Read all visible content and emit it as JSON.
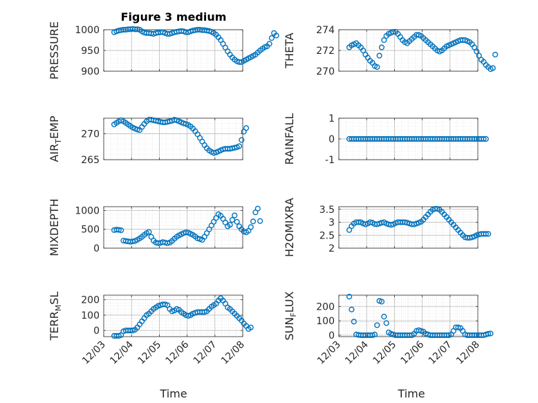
{
  "figure": {
    "title": "Figure 3 medium",
    "xlabel": "Time"
  },
  "style": {
    "marker_color": "#0072BD",
    "axes_color": "#262626",
    "grid_color": "#b0b0b0",
    "minor_grid_color": "#d8d8d8"
  },
  "chart_data": [
    {
      "type": "scatter",
      "position": "row1-left",
      "ylabel": "PRESSURE",
      "ylim": [
        900,
        1000
      ],
      "yticks": [
        900,
        950,
        1000
      ],
      "x_start": "12/03 09:00",
      "x_step_hours": 2,
      "xtick_labels": [
        "12/03",
        "12/04",
        "12/05",
        "12/06",
        "12/07",
        "12/08"
      ],
      "show_xtick_labels": false,
      "values": [
        994,
        996,
        998,
        999,
        1000,
        1000,
        1001,
        1001,
        1002,
        1001,
        1001,
        1000,
        996,
        993,
        992,
        992,
        991,
        990,
        992,
        993,
        994,
        994,
        992,
        990,
        990,
        992,
        994,
        995,
        996,
        997,
        996,
        994,
        994,
        996,
        998,
        999,
        1000,
        1000,
        999,
        999,
        998,
        997,
        995,
        992,
        988,
        982,
        975,
        966,
        957,
        948,
        940,
        933,
        928,
        924,
        922,
        922,
        925,
        928,
        931,
        934,
        937,
        940,
        945,
        950,
        954,
        958,
        960,
        966,
        980,
        992,
        986
      ]
    },
    {
      "type": "scatter",
      "position": "row1-right",
      "ylabel": "THETA",
      "ylim": [
        270,
        274
      ],
      "yticks": [
        270,
        272,
        274
      ],
      "x_start": "12/03 09:00",
      "x_step_hours": 2,
      "xtick_labels": [
        "12/03",
        "12/04",
        "12/05",
        "12/06",
        "12/07",
        "12/08"
      ],
      "show_xtick_labels": false,
      "values": [
        272.3,
        272.5,
        272.6,
        272.7,
        272.5,
        272.3,
        272.0,
        271.6,
        271.3,
        271.0,
        270.8,
        270.5,
        270.4,
        271.5,
        272.3,
        273.0,
        273.4,
        273.6,
        273.7,
        273.8,
        273.8,
        273.6,
        273.3,
        273.0,
        272.8,
        272.7,
        272.9,
        273.1,
        273.3,
        273.5,
        273.5,
        273.4,
        273.2,
        273.0,
        272.8,
        272.6,
        272.4,
        272.2,
        272.0,
        271.9,
        272.0,
        272.2,
        272.4,
        272.5,
        272.6,
        272.7,
        272.8,
        272.9,
        273.0,
        273.0,
        273.0,
        272.9,
        272.8,
        272.6,
        272.3,
        271.9,
        271.5,
        271.1,
        270.9,
        270.6,
        270.4,
        270.2,
        270.3,
        271.6
      ]
    },
    {
      "type": "scatter",
      "position": "row2-left",
      "ylabel": "AIR_TEMP",
      "ylim": [
        265,
        273
      ],
      "yticks": [
        265,
        270
      ],
      "x_start": "12/03 09:00",
      "x_step_hours": 2,
      "xtick_labels": [
        "12/03",
        "12/04",
        "12/05",
        "12/06",
        "12/07",
        "12/08"
      ],
      "show_xtick_labels": false,
      "values": [
        271.8,
        272.1,
        272.4,
        272.6,
        272.4,
        272.1,
        271.8,
        271.5,
        271.2,
        271.0,
        270.8,
        270.7,
        271.3,
        271.9,
        272.4,
        272.7,
        272.7,
        272.6,
        272.5,
        272.4,
        272.3,
        272.2,
        272.2,
        272.3,
        272.4,
        272.5,
        272.7,
        272.6,
        272.4,
        272.2,
        272.0,
        271.9,
        271.7,
        271.4,
        271.0,
        270.5,
        269.9,
        269.2,
        268.5,
        267.8,
        267.2,
        266.8,
        266.5,
        266.3,
        266.4,
        266.6,
        266.8,
        267.0,
        267.1,
        267.1,
        267.1,
        267.2,
        267.3,
        267.4,
        267.6,
        268.8,
        270.4,
        271.1
      ]
    },
    {
      "type": "scatter",
      "position": "row2-right",
      "ylabel": "RAINFALL",
      "ylim": [
        -1,
        1
      ],
      "yticks": [
        -1,
        0,
        1
      ],
      "x_start": "12/03 09:00",
      "x_step_hours": 2,
      "xtick_labels": [
        "12/03",
        "12/04",
        "12/05",
        "12/06",
        "12/07",
        "12/08"
      ],
      "show_xtick_labels": false,
      "constant_value": 0,
      "num_points": 60
    },
    {
      "type": "scatter",
      "position": "row3-left",
      "ylabel": "MIXDEPTH",
      "ylim": [
        0,
        1100
      ],
      "yticks": [
        0,
        500,
        1000
      ],
      "x_start": "12/03 09:00",
      "x_step_hours": 2,
      "xtick_labels": [
        "12/03",
        "12/04",
        "12/05",
        "12/06",
        "12/07",
        "12/08"
      ],
      "show_xtick_labels": false,
      "values": [
        480,
        490,
        485,
        475,
        200,
        190,
        180,
        170,
        180,
        190,
        220,
        260,
        300,
        350,
        400,
        430,
        300,
        200,
        150,
        130,
        140,
        160,
        150,
        130,
        150,
        190,
        250,
        300,
        340,
        370,
        400,
        420,
        410,
        380,
        350,
        310,
        260,
        240,
        220,
        300,
        400,
        500,
        600,
        700,
        800,
        900,
        860,
        780,
        680,
        580,
        620,
        750,
        870,
        700,
        580,
        500,
        440,
        420,
        460,
        560,
        710,
        950,
        1050,
        720
      ]
    },
    {
      "type": "scatter",
      "position": "row3-right",
      "ylabel": "H2OMIXRA",
      "ylim": [
        2,
        3.6
      ],
      "yticks": [
        2,
        2.5,
        3,
        3.5
      ],
      "x_start": "12/03 09:00",
      "x_step_hours": 2,
      "xtick_labels": [
        "12/03",
        "12/04",
        "12/05",
        "12/06",
        "12/07",
        "12/08"
      ],
      "show_xtick_labels": false,
      "values": [
        2.7,
        2.85,
        2.95,
        3.0,
        3.0,
        3.0,
        2.95,
        2.92,
        2.95,
        3.0,
        2.98,
        2.93,
        2.92,
        2.95,
        2.98,
        3.0,
        2.95,
        2.92,
        2.9,
        2.92,
        2.97,
        3.0,
        3.0,
        3.0,
        3.0,
        2.98,
        2.95,
        2.92,
        2.92,
        2.95,
        2.98,
        3.02,
        3.1,
        3.2,
        3.3,
        3.4,
        3.48,
        3.52,
        3.52,
        3.48,
        3.4,
        3.3,
        3.2,
        3.1,
        3.0,
        2.9,
        2.8,
        2.7,
        2.6,
        2.5,
        2.42,
        2.4,
        2.4,
        2.42,
        2.45,
        2.5,
        2.53,
        2.55,
        2.55,
        2.55,
        2.55
      ]
    },
    {
      "type": "scatter",
      "position": "row4-left",
      "ylabel": "TERR_MSL",
      "ylim": [
        -40,
        230
      ],
      "yticks": [
        0,
        100,
        200
      ],
      "x_start": "12/03 09:00",
      "x_step_hours": 2,
      "xtick_labels": [
        "12/03",
        "12/04",
        "12/05",
        "12/06",
        "12/07",
        "12/08"
      ],
      "show_xtick_labels": true,
      "values": [
        -35,
        -35,
        -35,
        -30,
        -5,
        0,
        0,
        0,
        0,
        5,
        20,
        40,
        60,
        80,
        100,
        110,
        125,
        140,
        150,
        160,
        165,
        170,
        170,
        165,
        140,
        125,
        130,
        140,
        135,
        120,
        110,
        100,
        95,
        100,
        110,
        115,
        120,
        120,
        120,
        120,
        125,
        140,
        155,
        165,
        175,
        195,
        210,
        195,
        175,
        150,
        140,
        125,
        110,
        95,
        80,
        65,
        45,
        30,
        10,
        20
      ]
    },
    {
      "type": "scatter",
      "position": "row4-right",
      "ylabel": "SUN_FLUX",
      "ylim": [
        -10,
        280
      ],
      "yticks": [
        0,
        100,
        200
      ],
      "x_start": "12/03 09:00",
      "x_step_hours": 2,
      "xtick_labels": [
        "12/03",
        "12/04",
        "12/05",
        "12/06",
        "12/07",
        "12/08"
      ],
      "show_xtick_labels": true,
      "values": [
        270,
        180,
        95,
        5,
        2,
        0,
        0,
        0,
        0,
        0,
        0,
        5,
        70,
        240,
        235,
        130,
        85,
        20,
        10,
        5,
        0,
        0,
        0,
        0,
        0,
        0,
        0,
        0,
        10,
        30,
        35,
        30,
        25,
        10,
        5,
        0,
        0,
        0,
        0,
        0,
        0,
        0,
        0,
        0,
        5,
        30,
        55,
        55,
        50,
        30,
        5,
        0,
        0,
        0,
        0,
        0,
        0,
        0,
        0,
        5,
        10,
        12
      ]
    }
  ]
}
